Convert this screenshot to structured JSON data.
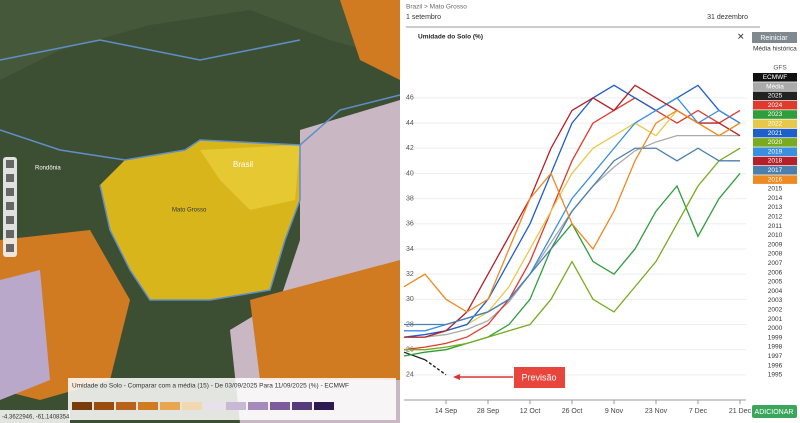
{
  "breadcrumb": "Brazil > Mato Grosso",
  "date_start": "1 setembro",
  "date_end": "31 dezembro",
  "reset_button": "Reiniciar",
  "add_button": "ADICIONAR",
  "callout": "Previsão",
  "legend_header": "Média histórica",
  "legend_other": [
    "GFS"
  ],
  "legend_inactive": [
    "2015",
    "2014",
    "2013",
    "2012",
    "2011",
    "2010",
    "2009",
    "2008",
    "2007",
    "2006",
    "2005",
    "2004",
    "2003",
    "2002",
    "2001",
    "2000",
    "1999",
    "1998",
    "1997",
    "1996",
    "1995"
  ],
  "map": {
    "labels": [
      "Brasil",
      "Mato Grosso",
      "Rondônia"
    ],
    "legend_title": "Umidade do Solo - Comparar com a média (15) - De 03/09/2025 Para 11/09/2025 (%) - ECMWF",
    "coordinates": "-4.3622946, -61.1408354"
  },
  "chart_data": {
    "type": "line",
    "title": "Umidade do Solo (%)",
    "categories": [
      null,
      null,
      "14 Sep",
      null,
      "28 Sep",
      null,
      "12 Oct",
      null,
      "26 Oct",
      null,
      "9 Nov",
      null,
      "23 Nov",
      null,
      "7 Dec",
      null,
      "21 Dec"
    ],
    "ylim": [
      22.4,
      47.5
    ],
    "yticks": [
      24,
      26,
      28,
      30,
      32,
      34,
      36,
      38,
      40,
      42,
      44,
      46
    ],
    "series": [
      {
        "name": "ECMWF",
        "color": "#111111",
        "dashed": true,
        "values": [
          null,
          25.2,
          24,
          null,
          null,
          null,
          null,
          null,
          null,
          null,
          null,
          null,
          null,
          null,
          null,
          null,
          null
        ]
      },
      {
        "name": "Média",
        "color": "#aaaaaa",
        "values": [
          27,
          27,
          27.2,
          27.6,
          28.3,
          29.8,
          32,
          34.5,
          37,
          39,
          40.5,
          41.8,
          42.5,
          43,
          43,
          43,
          43
        ]
      },
      {
        "name": "2025",
        "color": "#222222",
        "values": [
          25.8,
          25.2,
          null,
          null,
          null,
          null,
          null,
          null,
          null,
          null,
          null,
          null,
          null,
          null,
          null,
          null,
          null
        ]
      },
      {
        "name": "2024",
        "color": "#e03a2f",
        "values": [
          26,
          26.2,
          26.5,
          27,
          28,
          30,
          33,
          37,
          41,
          44,
          45,
          46,
          45,
          44,
          45,
          44,
          45
        ]
      },
      {
        "name": "2023",
        "color": "#2e9e3a",
        "values": [
          25.5,
          25.8,
          26,
          26.5,
          27,
          28,
          30,
          34,
          36,
          33,
          32,
          34,
          37,
          39,
          35,
          38,
          40
        ]
      },
      {
        "name": "2022",
        "color": "#e8c84a",
        "values": [
          27,
          27,
          27.5,
          28,
          29,
          31,
          34,
          37,
          40,
          42,
          43,
          44,
          43,
          45,
          44,
          43,
          44
        ]
      },
      {
        "name": "2021",
        "color": "#1f5fc8",
        "values": [
          27,
          27.2,
          27.5,
          28,
          30,
          33,
          36,
          40,
          44,
          46,
          47,
          46,
          45,
          46,
          47,
          45,
          44
        ]
      },
      {
        "name": "2020",
        "color": "#7aaa1e",
        "values": [
          26,
          26,
          26.2,
          26.5,
          27,
          27.5,
          28,
          30,
          33,
          30,
          29,
          31,
          33,
          36,
          39,
          41,
          42
        ]
      },
      {
        "name": "2019",
        "color": "#3a8fe0",
        "values": [
          27.5,
          27.5,
          28,
          28.5,
          29,
          30,
          32,
          35,
          38,
          40,
          42,
          44,
          45,
          46,
          44,
          45,
          44
        ]
      },
      {
        "name": "2018",
        "color": "#b3202a",
        "values": [
          27,
          27,
          27.5,
          29,
          32,
          35,
          38,
          42,
          45,
          46,
          45,
          47,
          46,
          45,
          44,
          44,
          43
        ]
      },
      {
        "name": "2017",
        "color": "#4b7fae",
        "values": [
          28,
          28,
          28,
          28.5,
          29,
          30,
          32,
          34,
          37,
          39,
          41,
          42,
          42,
          41,
          42,
          41,
          41
        ]
      },
      {
        "name": "2016",
        "color": "#ee8a22",
        "values": [
          31,
          32,
          30,
          29,
          30,
          34,
          38,
          40,
          36,
          34,
          37,
          41,
          44,
          45,
          44,
          43,
          44
        ]
      }
    ]
  }
}
